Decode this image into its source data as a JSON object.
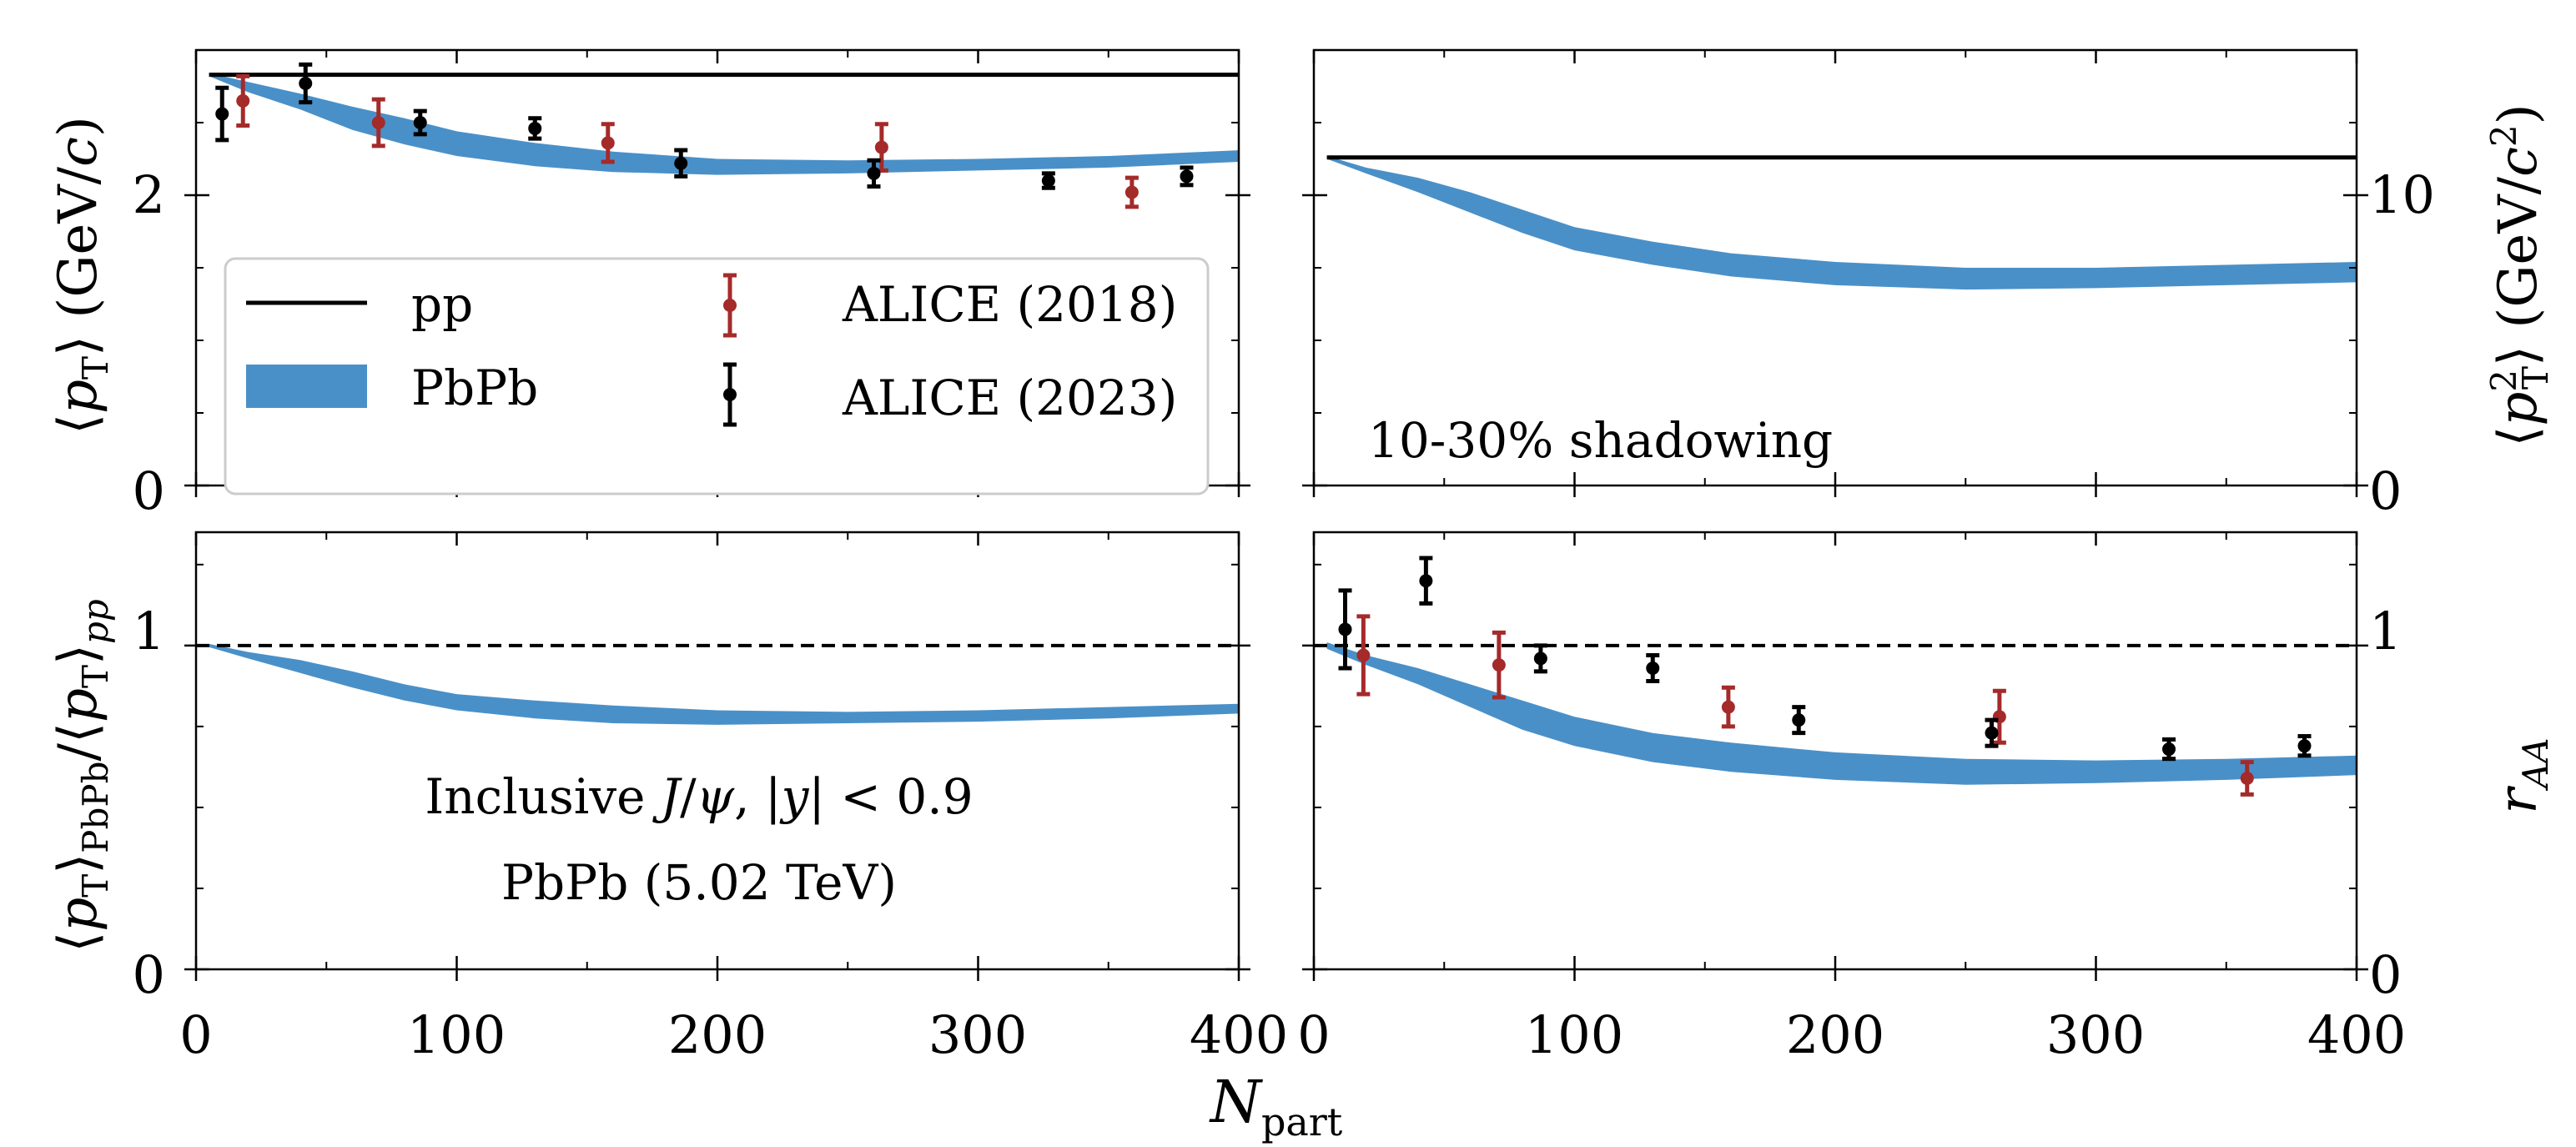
{
  "chart_data": [
    {
      "id": "top-left",
      "type": "line",
      "ylabel": "⟨p_T⟩ (GeV/c)",
      "xlim": [
        0,
        400
      ],
      "ylim": [
        0,
        3.0
      ],
      "yticks": [
        0,
        2
      ],
      "yticklabels": [
        "0",
        "2"
      ],
      "reference_line": {
        "name": "pp",
        "y": 2.83,
        "style": "solid"
      },
      "band": {
        "name": "PbPb",
        "x": [
          5,
          20,
          40,
          60,
          80,
          100,
          130,
          160,
          200,
          250,
          300,
          350,
          400
        ],
        "lower": [
          2.82,
          2.71,
          2.59,
          2.45,
          2.35,
          2.27,
          2.2,
          2.16,
          2.14,
          2.15,
          2.17,
          2.19,
          2.23
        ],
        "upper": [
          2.84,
          2.78,
          2.7,
          2.61,
          2.53,
          2.44,
          2.36,
          2.3,
          2.25,
          2.24,
          2.25,
          2.27,
          2.31
        ]
      },
      "series": [
        {
          "name": "ALICE (2018)",
          "color": "#a52a2a",
          "points": [
            {
              "x": 18,
              "y": 2.65,
              "err": 0.17
            },
            {
              "x": 70,
              "y": 2.5,
              "err": 0.16
            },
            {
              "x": 158,
              "y": 2.36,
              "err": 0.13
            },
            {
              "x": 263,
              "y": 2.33,
              "err": 0.16
            },
            {
              "x": 359,
              "y": 2.02,
              "err": 0.1
            }
          ]
        },
        {
          "name": "ALICE (2023)",
          "color": "#000000",
          "points": [
            {
              "x": 10,
              "y": 2.56,
              "err": 0.18
            },
            {
              "x": 42,
              "y": 2.77,
              "err": 0.13
            },
            {
              "x": 86,
              "y": 2.5,
              "err": 0.08
            },
            {
              "x": 130,
              "y": 2.46,
              "err": 0.07
            },
            {
              "x": 186,
              "y": 2.22,
              "err": 0.09
            },
            {
              "x": 260,
              "y": 2.15,
              "err": 0.09
            },
            {
              "x": 327,
              "y": 2.1,
              "err": 0.05
            },
            {
              "x": 380,
              "y": 2.13,
              "err": 0.06
            }
          ]
        }
      ],
      "legend": {
        "location": "lower-left",
        "entries": [
          "pp",
          "PbPb",
          "ALICE (2018)",
          "ALICE (2023)"
        ]
      }
    },
    {
      "id": "top-right",
      "type": "line",
      "ylabel": "⟨p_T^2⟩ (GeV/c^2)",
      "ylabel_side": "right",
      "xlim": [
        0,
        400
      ],
      "ylim": [
        0,
        15
      ],
      "yticks": [
        0,
        10
      ],
      "yticklabels": [
        "0",
        "10"
      ],
      "annotation": "10-30% shadowing",
      "reference_line": {
        "name": "pp",
        "y": 11.3,
        "style": "solid"
      },
      "band": {
        "name": "PbPb",
        "x": [
          5,
          20,
          40,
          60,
          80,
          100,
          130,
          160,
          200,
          250,
          300,
          350,
          400
        ],
        "lower": [
          11.25,
          10.75,
          10.1,
          9.4,
          8.7,
          8.1,
          7.6,
          7.2,
          6.9,
          6.75,
          6.8,
          6.9,
          7.0
        ],
        "upper": [
          11.35,
          10.95,
          10.6,
          10.1,
          9.5,
          8.9,
          8.4,
          8.0,
          7.7,
          7.5,
          7.5,
          7.6,
          7.7
        ]
      }
    },
    {
      "id": "bottom-left",
      "type": "line",
      "ylabel": "⟨p_T⟩_PbPb/⟨p_T⟩_pp",
      "xlabel": "N_part",
      "xlim": [
        0,
        400
      ],
      "ylim": [
        0,
        1.35
      ],
      "xticks": [
        0,
        100,
        200,
        300,
        400
      ],
      "xticklabels": [
        "0",
        "100",
        "200",
        "300",
        "400"
      ],
      "yticks": [
        0,
        1
      ],
      "yticklabels": [
        "0",
        "1"
      ],
      "annotations": [
        "Inclusive J/ψ, |y| < 0.9",
        "PbPb (5.02 TeV)"
      ],
      "reference_line": {
        "y": 1.0,
        "style": "dashed"
      },
      "band": {
        "name": "PbPb",
        "x": [
          5,
          20,
          40,
          60,
          80,
          100,
          130,
          160,
          200,
          250,
          300,
          350,
          400
        ],
        "lower": [
          0.995,
          0.96,
          0.915,
          0.87,
          0.83,
          0.8,
          0.775,
          0.76,
          0.755,
          0.76,
          0.765,
          0.775,
          0.79
        ],
        "upper": [
          1.005,
          0.98,
          0.955,
          0.92,
          0.88,
          0.85,
          0.83,
          0.815,
          0.8,
          0.795,
          0.8,
          0.81,
          0.82
        ]
      }
    },
    {
      "id": "bottom-right",
      "type": "line",
      "ylabel": "r_AA",
      "ylabel_side": "right",
      "xlim": [
        0,
        400
      ],
      "ylim": [
        0,
        1.35
      ],
      "xticks": [
        0,
        100,
        200,
        300,
        400
      ],
      "xticklabels": [
        "0",
        "100",
        "200",
        "300",
        "400"
      ],
      "yticks": [
        0,
        1
      ],
      "yticklabels": [
        "0",
        "1"
      ],
      "reference_line": {
        "y": 1.0,
        "style": "dashed"
      },
      "band": {
        "name": "PbPb",
        "x": [
          5,
          20,
          40,
          60,
          80,
          100,
          130,
          160,
          200,
          250,
          300,
          350,
          400
        ],
        "lower": [
          0.99,
          0.94,
          0.88,
          0.81,
          0.74,
          0.69,
          0.64,
          0.61,
          0.585,
          0.57,
          0.575,
          0.585,
          0.6
        ],
        "upper": [
          1.01,
          0.97,
          0.93,
          0.88,
          0.83,
          0.78,
          0.73,
          0.7,
          0.67,
          0.65,
          0.645,
          0.65,
          0.66
        ]
      },
      "series": [
        {
          "name": "ALICE (2018)",
          "color": "#a52a2a",
          "points": [
            {
              "x": 19,
              "y": 0.97,
              "err": 0.12
            },
            {
              "x": 71,
              "y": 0.94,
              "err": 0.1
            },
            {
              "x": 159,
              "y": 0.81,
              "err": 0.06
            },
            {
              "x": 263,
              "y": 0.78,
              "err": 0.08
            },
            {
              "x": 358,
              "y": 0.59,
              "err": 0.05
            }
          ]
        },
        {
          "name": "ALICE (2023)",
          "color": "#000000",
          "points": [
            {
              "x": 12,
              "y": 1.05,
              "err": 0.12
            },
            {
              "x": 43,
              "y": 1.2,
              "err": 0.07
            },
            {
              "x": 87,
              "y": 0.96,
              "err": 0.04
            },
            {
              "x": 130,
              "y": 0.93,
              "err": 0.04
            },
            {
              "x": 186,
              "y": 0.77,
              "err": 0.04
            },
            {
              "x": 260,
              "y": 0.73,
              "err": 0.04
            },
            {
              "x": 328,
              "y": 0.68,
              "err": 0.03
            },
            {
              "x": 380,
              "y": 0.69,
              "err": 0.03
            }
          ]
        }
      ]
    }
  ],
  "colors": {
    "band": "#4a90c8",
    "alice2018": "#a52a2a",
    "alice2023": "#000000",
    "line": "#000000"
  }
}
